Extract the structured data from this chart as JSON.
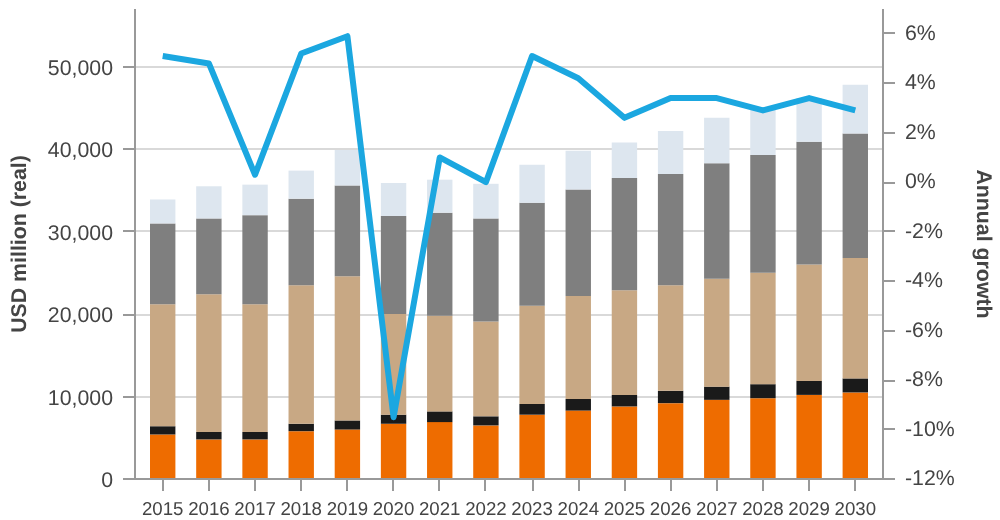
{
  "chart_data": {
    "type": "bar",
    "stacked": true,
    "ylabel": "USD million (real)",
    "y2label": "Annual growth",
    "categories": [
      "2015",
      "2016",
      "2017",
      "2018",
      "2019",
      "2020",
      "2021",
      "2022",
      "2023",
      "2024",
      "2025",
      "2026",
      "2027",
      "2028",
      "2029",
      "2030"
    ],
    "series": [
      {
        "color": "#ee6c00",
        "values": [
          5400,
          4800,
          4800,
          5800,
          6000,
          6700,
          6900,
          6500,
          7800,
          8300,
          8800,
          9200,
          9600,
          9800,
          10200,
          10500
        ]
      },
      {
        "color": "#1a1a1a",
        "values": [
          1000,
          900,
          900,
          900,
          1100,
          1100,
          1300,
          1100,
          1300,
          1400,
          1400,
          1500,
          1600,
          1700,
          1700,
          1700
        ]
      },
      {
        "color": "#c8a884",
        "values": [
          14800,
          16700,
          15500,
          16800,
          17500,
          12200,
          11600,
          11500,
          11900,
          12500,
          12700,
          12800,
          13100,
          13500,
          14100,
          14600
        ]
      },
      {
        "color": "#7f7f7f",
        "values": [
          9800,
          9200,
          10800,
          10500,
          11000,
          11900,
          12500,
          12500,
          12500,
          12900,
          13600,
          13500,
          14000,
          14300,
          14900,
          15100
        ]
      },
      {
        "color": "#dde6ef",
        "values": [
          2900,
          3900,
          3700,
          3400,
          4300,
          4000,
          4000,
          4200,
          4600,
          4700,
          4300,
          5200,
          5500,
          5500,
          5300,
          5900
        ]
      },
      {
        "type": "line",
        "axis": "y2",
        "color": "#1ba7e0",
        "values": [
          5.1,
          4.8,
          0.3,
          5.2,
          5.9,
          -9.5,
          1.0,
          0.0,
          5.1,
          4.2,
          2.6,
          3.4,
          3.4,
          2.9,
          3.4,
          2.9
        ]
      }
    ],
    "ylim": [
      0,
      57000
    ],
    "yticks": [
      0,
      {
        "value": 10000,
        "label": "10,000"
      },
      {
        "value": 20000,
        "label": "20,000"
      },
      {
        "value": 30000,
        "label": "30,000"
      },
      {
        "value": 40000,
        "label": "40,000"
      },
      {
        "value": 50000,
        "label": "50,000"
      }
    ],
    "y2lim": [
      -12,
      7
    ],
    "y2ticks": [
      {
        "value": -12,
        "label": "-12%"
      },
      {
        "value": -10,
        "label": "-10%"
      },
      {
        "value": -8,
        "label": "-8%"
      },
      {
        "value": -6,
        "label": "-6%"
      },
      {
        "value": -4,
        "label": "-4%"
      },
      {
        "value": -2,
        "label": "-2%"
      },
      {
        "value": 0,
        "label": "0%"
      },
      {
        "value": 2,
        "label": "2%"
      },
      {
        "value": 4,
        "label": "4%"
      },
      {
        "value": 6,
        "label": "6%"
      }
    ],
    "grid": "y"
  }
}
